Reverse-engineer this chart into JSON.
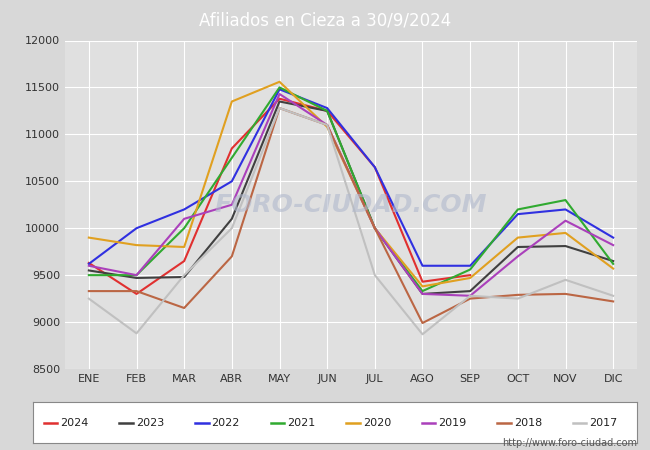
{
  "title": "Afiliados en Cieza a 30/9/2024",
  "title_color": "white",
  "title_bg_color": "#4a7bc4",
  "ylim": [
    8500,
    12000
  ],
  "yticks": [
    8500,
    9000,
    9500,
    10000,
    10500,
    11000,
    11500,
    12000
  ],
  "months": [
    "ENE",
    "FEB",
    "MAR",
    "ABR",
    "MAY",
    "JUN",
    "JUL",
    "AGO",
    "SEP",
    "OCT",
    "NOV",
    "DIC"
  ],
  "bg_color": "#d8d8d8",
  "plot_bg_color": "#e0e0e0",
  "grid_color": "white",
  "watermark": "FORO-CIUDAD.COM",
  "url": "http://www.foro-ciudad.com",
  "series": [
    {
      "year": "2024",
      "color": "#e03030",
      "data": [
        9630,
        9300,
        9650,
        10850,
        11380,
        11250,
        10650,
        9430,
        9500,
        null,
        null,
        null
      ]
    },
    {
      "year": "2023",
      "color": "#404040",
      "data": [
        9550,
        9470,
        9480,
        10100,
        11350,
        11250,
        10000,
        9300,
        9330,
        9800,
        9810,
        9650
      ]
    },
    {
      "year": "2022",
      "color": "#3030e0",
      "data": [
        9620,
        10000,
        10200,
        10500,
        11480,
        11280,
        10650,
        9600,
        9600,
        10150,
        10200,
        9900
      ]
    },
    {
      "year": "2021",
      "color": "#30aa30",
      "data": [
        9500,
        9500,
        10000,
        10750,
        11500,
        11250,
        10000,
        9330,
        9560,
        10200,
        10300,
        9620
      ]
    },
    {
      "year": "2020",
      "color": "#e0a020",
      "data": [
        9900,
        9820,
        9800,
        11350,
        11560,
        11080,
        10000,
        9380,
        9470,
        9900,
        9950,
        9570
      ]
    },
    {
      "year": "2019",
      "color": "#aa40bb",
      "data": [
        9600,
        9500,
        10100,
        10250,
        11430,
        11100,
        10000,
        9300,
        9280,
        9700,
        10080,
        9820
      ]
    },
    {
      "year": "2018",
      "color": "#bb6644",
      "data": [
        9330,
        9330,
        9150,
        9700,
        11280,
        11100,
        10000,
        8990,
        9250,
        9290,
        9300,
        9220
      ]
    },
    {
      "year": "2017",
      "color": "#c0c0c0",
      "data": [
        9250,
        8880,
        9500,
        10000,
        11280,
        11100,
        9500,
        8870,
        9280,
        9250,
        9450,
        9280
      ]
    }
  ]
}
